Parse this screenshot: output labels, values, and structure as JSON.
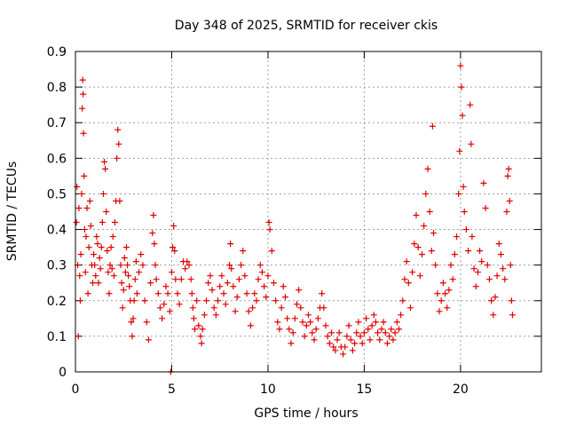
{
  "chart_data": {
    "type": "scatter",
    "title": "Day 348 of 2025, SRMTID for receiver ckis",
    "xlabel": "GPS time / hours",
    "ylabel": "SRMTID / TECUs",
    "xlim": [
      0,
      24.2
    ],
    "ylim": [
      0,
      0.9
    ],
    "x_ticks": [
      0,
      5,
      10,
      15,
      20
    ],
    "x_tick_labels": [
      "0",
      "5",
      "10",
      "15",
      "20"
    ],
    "y_ticks": [
      0,
      0.1,
      0.2,
      0.3,
      0.4,
      0.5,
      0.6,
      0.7,
      0.8,
      0.9
    ],
    "y_tick_labels": [
      "0",
      "0.1",
      "0.2",
      "0.3",
      "0.4",
      "0.5",
      "0.6",
      "0.7",
      "0.8",
      "0.9"
    ],
    "grid": true,
    "marker": "+",
    "color": "#e00000",
    "series": [
      {
        "name": "ckis",
        "points": [
          [
            0.05,
            0.42
          ],
          [
            0.08,
            0.52
          ],
          [
            0.12,
            0.3
          ],
          [
            0.15,
            0.1
          ],
          [
            0.18,
            0.46
          ],
          [
            0.22,
            0.27
          ],
          [
            0.25,
            0.2
          ],
          [
            0.28,
            0.33
          ],
          [
            0.32,
            0.5
          ],
          [
            0.35,
            0.74
          ],
          [
            0.38,
            0.82
          ],
          [
            0.4,
            0.78
          ],
          [
            0.42,
            0.67
          ],
          [
            0.45,
            0.55
          ],
          [
            0.48,
            0.4
          ],
          [
            0.52,
            0.28
          ],
          [
            0.55,
            0.38
          ],
          [
            0.6,
            0.46
          ],
          [
            0.65,
            0.22
          ],
          [
            0.7,
            0.35
          ],
          [
            0.75,
            0.48
          ],
          [
            0.8,
            0.41
          ],
          [
            0.85,
            0.3
          ],
          [
            0.9,
            0.25
          ],
          [
            0.95,
            0.33
          ],
          [
            1.0,
            0.3
          ],
          [
            1.05,
            0.27
          ],
          [
            1.1,
            0.38
          ],
          [
            1.15,
            0.36
          ],
          [
            1.2,
            0.25
          ],
          [
            1.25,
            0.32
          ],
          [
            1.3,
            0.29
          ],
          [
            1.35,
            0.35
          ],
          [
            1.4,
            0.42
          ],
          [
            1.45,
            0.5
          ],
          [
            1.5,
            0.59
          ],
          [
            1.55,
            0.57
          ],
          [
            1.6,
            0.45
          ],
          [
            1.65,
            0.34
          ],
          [
            1.7,
            0.28
          ],
          [
            1.75,
            0.22
          ],
          [
            1.8,
            0.3
          ],
          [
            1.85,
            0.35
          ],
          [
            1.9,
            0.29
          ],
          [
            1.95,
            0.38
          ],
          [
            2.0,
            0.27
          ],
          [
            2.05,
            0.42
          ],
          [
            2.1,
            0.48
          ],
          [
            2.15,
            0.6
          ],
          [
            2.2,
            0.68
          ],
          [
            2.25,
            0.64
          ],
          [
            2.3,
            0.48
          ],
          [
            2.35,
            0.3
          ],
          [
            2.4,
            0.25
          ],
          [
            2.45,
            0.18
          ],
          [
            2.5,
            0.23
          ],
          [
            2.55,
            0.32
          ],
          [
            2.6,
            0.28
          ],
          [
            2.65,
            0.35
          ],
          [
            2.7,
            0.3
          ],
          [
            2.75,
            0.27
          ],
          [
            2.8,
            0.24
          ],
          [
            2.85,
            0.2
          ],
          [
            2.9,
            0.14
          ],
          [
            2.95,
            0.1
          ],
          [
            3.0,
            0.15
          ],
          [
            3.05,
            0.2
          ],
          [
            3.1,
            0.26
          ],
          [
            3.15,
            0.31
          ],
          [
            3.2,
            0.22
          ],
          [
            3.3,
            0.28
          ],
          [
            3.4,
            0.33
          ],
          [
            3.5,
            0.3
          ],
          [
            3.6,
            0.2
          ],
          [
            3.7,
            0.14
          ],
          [
            3.8,
            0.09
          ],
          [
            3.9,
            0.25
          ],
          [
            4.0,
            0.39
          ],
          [
            4.05,
            0.44
          ],
          [
            4.1,
            0.36
          ],
          [
            4.15,
            0.3
          ],
          [
            4.2,
            0.26
          ],
          [
            4.3,
            0.22
          ],
          [
            4.4,
            0.18
          ],
          [
            4.5,
            0.15
          ],
          [
            4.6,
            0.19
          ],
          [
            4.7,
            0.24
          ],
          [
            4.8,
            0.22
          ],
          [
            4.9,
            0.17
          ],
          [
            4.95,
            0.0
          ],
          [
            5.0,
            0.28
          ],
          [
            5.05,
            0.35
          ],
          [
            5.1,
            0.41
          ],
          [
            5.15,
            0.34
          ],
          [
            5.2,
            0.26
          ],
          [
            5.3,
            0.22
          ],
          [
            5.4,
            0.19
          ],
          [
            5.5,
            0.26
          ],
          [
            5.6,
            0.31
          ],
          [
            5.7,
            0.29
          ],
          [
            5.8,
            0.31
          ],
          [
            5.9,
            0.3
          ],
          [
            6.0,
            0.26
          ],
          [
            6.05,
            0.22
          ],
          [
            6.1,
            0.18
          ],
          [
            6.15,
            0.15
          ],
          [
            6.2,
            0.12
          ],
          [
            6.3,
            0.2
          ],
          [
            6.4,
            0.13
          ],
          [
            6.5,
            0.1
          ],
          [
            6.55,
            0.08
          ],
          [
            6.6,
            0.12
          ],
          [
            6.7,
            0.16
          ],
          [
            6.8,
            0.2
          ],
          [
            6.9,
            0.25
          ],
          [
            7.0,
            0.27
          ],
          [
            7.1,
            0.23
          ],
          [
            7.2,
            0.18
          ],
          [
            7.3,
            0.16
          ],
          [
            7.4,
            0.2
          ],
          [
            7.5,
            0.24
          ],
          [
            7.6,
            0.27
          ],
          [
            7.7,
            0.22
          ],
          [
            7.8,
            0.19
          ],
          [
            7.9,
            0.25
          ],
          [
            8.0,
            0.3
          ],
          [
            8.05,
            0.36
          ],
          [
            8.1,
            0.29
          ],
          [
            8.2,
            0.24
          ],
          [
            8.3,
            0.17
          ],
          [
            8.4,
            0.21
          ],
          [
            8.5,
            0.26
          ],
          [
            8.6,
            0.3
          ],
          [
            8.7,
            0.34
          ],
          [
            8.8,
            0.27
          ],
          [
            8.9,
            0.22
          ],
          [
            9.0,
            0.17
          ],
          [
            9.1,
            0.13
          ],
          [
            9.2,
            0.18
          ],
          [
            9.3,
            0.22
          ],
          [
            9.4,
            0.2
          ],
          [
            9.5,
            0.26
          ],
          [
            9.6,
            0.3
          ],
          [
            9.7,
            0.28
          ],
          [
            9.8,
            0.24
          ],
          [
            9.9,
            0.21
          ],
          [
            10.0,
            0.27
          ],
          [
            10.05,
            0.42
          ],
          [
            10.1,
            0.4
          ],
          [
            10.2,
            0.34
          ],
          [
            10.3,
            0.25
          ],
          [
            10.4,
            0.2
          ],
          [
            10.5,
            0.14
          ],
          [
            10.6,
            0.12
          ],
          [
            10.7,
            0.18
          ],
          [
            10.8,
            0.24
          ],
          [
            10.9,
            0.21
          ],
          [
            11.0,
            0.15
          ],
          [
            11.1,
            0.12
          ],
          [
            11.2,
            0.08
          ],
          [
            11.3,
            0.11
          ],
          [
            11.4,
            0.15
          ],
          [
            11.5,
            0.19
          ],
          [
            11.6,
            0.23
          ],
          [
            11.7,
            0.18
          ],
          [
            11.8,
            0.14
          ],
          [
            11.9,
            0.1
          ],
          [
            12.0,
            0.13
          ],
          [
            12.1,
            0.16
          ],
          [
            12.2,
            0.14
          ],
          [
            12.3,
            0.11
          ],
          [
            12.4,
            0.09
          ],
          [
            12.5,
            0.12
          ],
          [
            12.6,
            0.15
          ],
          [
            12.7,
            0.18
          ],
          [
            12.8,
            0.22
          ],
          [
            12.9,
            0.18
          ],
          [
            13.0,
            0.13
          ],
          [
            13.1,
            0.1
          ],
          [
            13.2,
            0.08
          ],
          [
            13.3,
            0.11
          ],
          [
            13.4,
            0.07
          ],
          [
            13.5,
            0.06
          ],
          [
            13.6,
            0.09
          ],
          [
            13.7,
            0.11
          ],
          [
            13.8,
            0.07
          ],
          [
            13.9,
            0.05
          ],
          [
            14.0,
            0.07
          ],
          [
            14.1,
            0.1
          ],
          [
            14.2,
            0.13
          ],
          [
            14.3,
            0.09
          ],
          [
            14.4,
            0.06
          ],
          [
            14.5,
            0.08
          ],
          [
            14.6,
            0.11
          ],
          [
            14.7,
            0.14
          ],
          [
            14.8,
            0.1
          ],
          [
            14.9,
            0.08
          ],
          [
            15.0,
            0.11
          ],
          [
            15.1,
            0.15
          ],
          [
            15.2,
            0.12
          ],
          [
            15.3,
            0.09
          ],
          [
            15.4,
            0.13
          ],
          [
            15.5,
            0.16
          ],
          [
            15.6,
            0.14
          ],
          [
            15.7,
            0.11
          ],
          [
            15.8,
            0.09
          ],
          [
            15.9,
            0.12
          ],
          [
            16.0,
            0.14
          ],
          [
            16.1,
            0.11
          ],
          [
            16.2,
            0.08
          ],
          [
            16.3,
            0.1
          ],
          [
            16.4,
            0.12
          ],
          [
            16.5,
            0.09
          ],
          [
            16.6,
            0.11
          ],
          [
            16.7,
            0.14
          ],
          [
            16.8,
            0.12
          ],
          [
            16.9,
            0.16
          ],
          [
            17.0,
            0.2
          ],
          [
            17.1,
            0.26
          ],
          [
            17.2,
            0.31
          ],
          [
            17.3,
            0.25
          ],
          [
            17.4,
            0.18
          ],
          [
            17.5,
            0.28
          ],
          [
            17.6,
            0.36
          ],
          [
            17.7,
            0.44
          ],
          [
            17.8,
            0.35
          ],
          [
            17.9,
            0.27
          ],
          [
            18.0,
            0.33
          ],
          [
            18.1,
            0.41
          ],
          [
            18.2,
            0.5
          ],
          [
            18.3,
            0.57
          ],
          [
            18.4,
            0.45
          ],
          [
            18.5,
            0.34
          ],
          [
            18.55,
            0.69
          ],
          [
            18.6,
            0.39
          ],
          [
            18.7,
            0.3
          ],
          [
            18.8,
            0.22
          ],
          [
            18.9,
            0.17
          ],
          [
            19.0,
            0.2
          ],
          [
            19.1,
            0.25
          ],
          [
            19.2,
            0.22
          ],
          [
            19.3,
            0.18
          ],
          [
            19.4,
            0.23
          ],
          [
            19.5,
            0.3
          ],
          [
            19.6,
            0.26
          ],
          [
            19.7,
            0.33
          ],
          [
            19.8,
            0.38
          ],
          [
            19.9,
            0.5
          ],
          [
            19.95,
            0.62
          ],
          [
            20.0,
            0.86
          ],
          [
            20.05,
            0.8
          ],
          [
            20.1,
            0.72
          ],
          [
            20.15,
            0.52
          ],
          [
            20.2,
            0.45
          ],
          [
            20.3,
            0.4
          ],
          [
            20.4,
            0.34
          ],
          [
            20.5,
            0.75
          ],
          [
            20.55,
            0.64
          ],
          [
            20.6,
            0.38
          ],
          [
            20.7,
            0.29
          ],
          [
            20.8,
            0.24
          ],
          [
            20.9,
            0.28
          ],
          [
            21.0,
            0.34
          ],
          [
            21.1,
            0.31
          ],
          [
            21.2,
            0.53
          ],
          [
            21.3,
            0.46
          ],
          [
            21.4,
            0.3
          ],
          [
            21.5,
            0.26
          ],
          [
            21.6,
            0.2
          ],
          [
            21.7,
            0.16
          ],
          [
            21.8,
            0.21
          ],
          [
            21.9,
            0.27
          ],
          [
            22.0,
            0.36
          ],
          [
            22.1,
            0.33
          ],
          [
            22.2,
            0.29
          ],
          [
            22.3,
            0.26
          ],
          [
            22.4,
            0.45
          ],
          [
            22.45,
            0.55
          ],
          [
            22.5,
            0.57
          ],
          [
            22.55,
            0.48
          ],
          [
            22.6,
            0.3
          ],
          [
            22.65,
            0.2
          ],
          [
            22.7,
            0.16
          ]
        ]
      }
    ]
  }
}
